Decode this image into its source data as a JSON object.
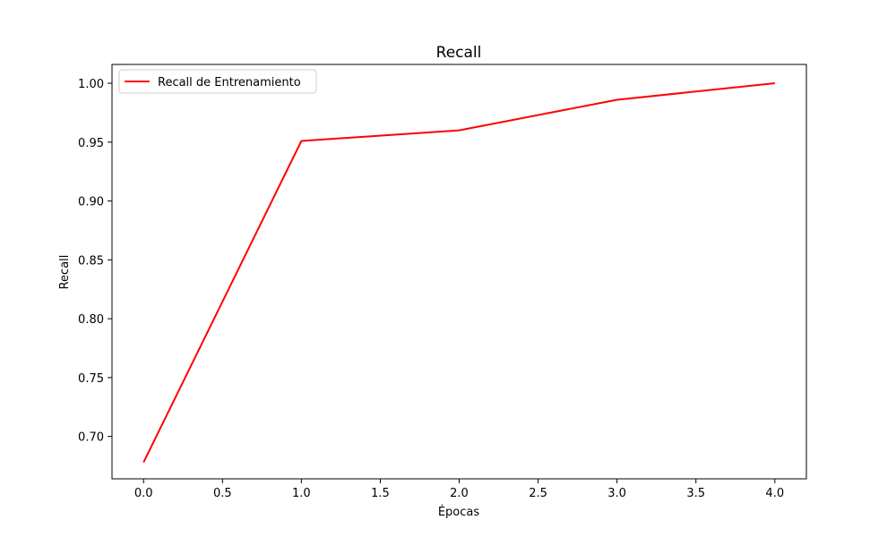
{
  "chart_data": {
    "type": "line",
    "title": "Recall",
    "xlabel": "Épocas",
    "ylabel": "Recall",
    "xlim": [
      -0.2,
      4.2
    ],
    "ylim": [
      0.664,
      1.016
    ],
    "x_ticks": [
      0.0,
      0.5,
      1.0,
      1.5,
      2.0,
      2.5,
      3.0,
      3.5,
      4.0
    ],
    "x_tick_labels": [
      "0.0",
      "0.5",
      "1.0",
      "1.5",
      "2.0",
      "2.5",
      "3.0",
      "3.5",
      "4.0"
    ],
    "y_ticks": [
      0.7,
      0.75,
      0.8,
      0.85,
      0.9,
      0.95,
      1.0
    ],
    "y_tick_labels": [
      "0.70",
      "0.75",
      "0.80",
      "0.85",
      "0.90",
      "0.95",
      "1.00"
    ],
    "grid": false,
    "legend_position": "upper-left",
    "series": [
      {
        "name": "Recall de Entrenamiento",
        "color": "#ff0000",
        "x": [
          0,
          1,
          2,
          3,
          4
        ],
        "values": [
          0.678,
          0.951,
          0.96,
          0.986,
          1.0
        ]
      }
    ]
  }
}
